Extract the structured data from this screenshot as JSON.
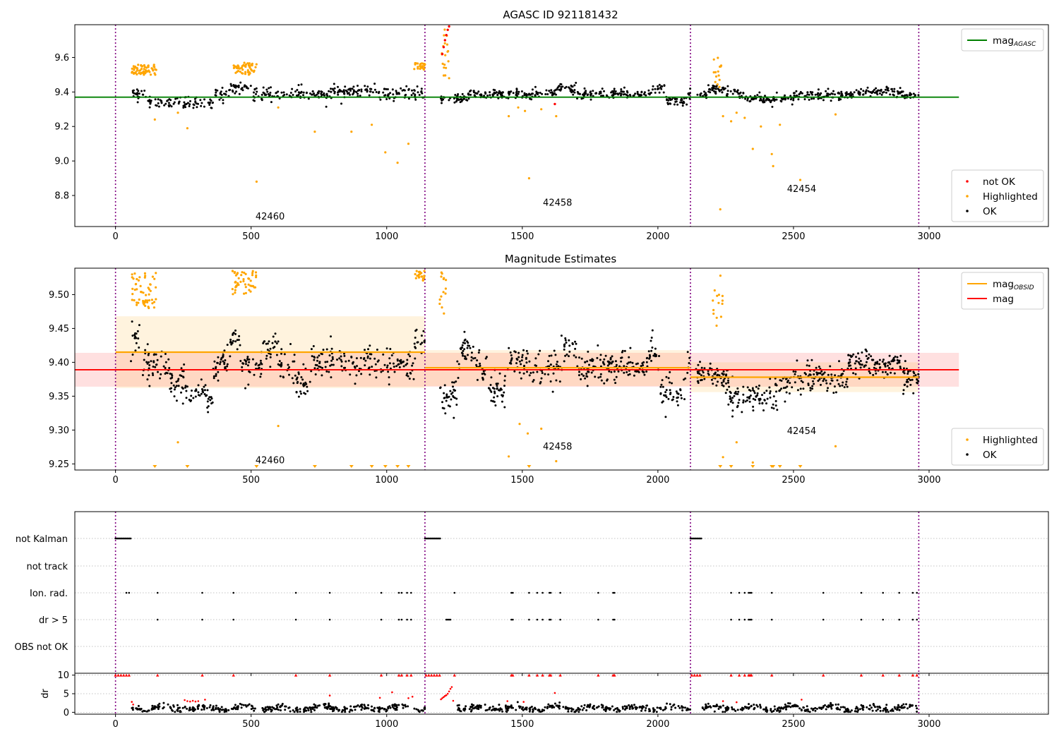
{
  "figure": {
    "background": "#ffffff"
  },
  "chart_data": [
    {
      "type": "scatter",
      "title": "AGASC ID 921181432",
      "xlim": [
        -150,
        3440
      ],
      "ylim": [
        8.62,
        9.79
      ],
      "xticks": [
        0,
        500,
        1000,
        1500,
        2000,
        2500,
        3000
      ],
      "yticks": [
        8.8,
        9.0,
        9.2,
        9.4,
        9.6
      ],
      "ytick_labels": [
        "8.8",
        "9.0",
        "9.2",
        "9.4",
        "9.6"
      ],
      "obs_boundaries": [
        0,
        1141,
        2120,
        2962
      ],
      "obsid_labels": [
        {
          "text": "42460",
          "x": 570,
          "y": 8.66
        },
        {
          "text": "42458",
          "x": 1630,
          "y": 8.74
        },
        {
          "text": "42454",
          "x": 2530,
          "y": 8.82
        }
      ],
      "lines": [
        {
          "name": "mag",
          "subscript": "AGASC",
          "color": "#008000",
          "y": 9.37,
          "x": [
            -150,
            3110
          ]
        }
      ],
      "legends": [
        {
          "position": "upper-right",
          "items": [
            {
              "label": "mag",
              "subscript": "AGASC",
              "color": "#008000",
              "kind": "line"
            }
          ]
        },
        {
          "position": "lower-right",
          "items": [
            {
              "label": "not OK",
              "color": "#ff0000",
              "kind": "dot"
            },
            {
              "label": "Highlighted",
              "color": "#ffa500",
              "kind": "dot"
            },
            {
              "label": "OK",
              "color": "#000000",
              "kind": "dot"
            }
          ]
        }
      ],
      "segments": [
        {
          "name": "42460",
          "x": [
            60,
            1141
          ],
          "ok_mean": 9.39,
          "ok_noise": 0.018,
          "ok_n": 380,
          "waves": [
            [
              120,
              360,
              9.34
            ],
            [
              420,
              500,
              9.43
            ],
            [
              800,
              960,
              9.405
            ]
          ]
        },
        {
          "name": "42458",
          "x": [
            1195,
            2120
          ],
          "ok_mean": 9.39,
          "ok_noise": 0.014,
          "ok_n": 360,
          "waves": [
            [
              1195,
              1300,
              9.36
            ],
            [
              1620,
              1700,
              9.42
            ],
            [
              1980,
              2030,
              9.42
            ],
            [
              2030,
              2110,
              9.35
            ]
          ]
        },
        {
          "name": "42454",
          "x": [
            2140,
            2962
          ],
          "ok_mean": 9.38,
          "ok_noise": 0.012,
          "ok_n": 330,
          "waves": [
            [
              2180,
              2300,
              9.41
            ],
            [
              2320,
              2500,
              9.36
            ],
            [
              2720,
              2900,
              9.4
            ]
          ]
        }
      ],
      "highlighted_clusters": [
        {
          "x": [
            60,
            150
          ],
          "y_range": [
            9.5,
            9.56
          ],
          "n": 60
        },
        {
          "x": [
            435,
            520
          ],
          "y_range": [
            9.5,
            9.57
          ],
          "n": 50
        },
        {
          "x": [
            1100,
            1141
          ],
          "y_range": [
            9.53,
            9.57
          ],
          "n": 25
        },
        {
          "x": [
            1200,
            1230
          ],
          "y_range": [
            9.47,
            9.78
          ],
          "n": 18
        },
        {
          "x": [
            2200,
            2240
          ],
          "y_range": [
            9.42,
            9.6
          ],
          "n": 14
        }
      ],
      "not_ok_points": [
        [
          1210,
          9.66
        ],
        [
          1215,
          9.7
        ],
        [
          1220,
          9.73
        ],
        [
          1225,
          9.76
        ],
        [
          1230,
          9.78
        ],
        [
          1205,
          9.62
        ],
        [
          1620,
          9.33
        ]
      ],
      "highlighted_outliers": [
        [
          145,
          9.24
        ],
        [
          230,
          9.28
        ],
        [
          265,
          9.19
        ],
        [
          520,
          8.88
        ],
        [
          600,
          9.31
        ],
        [
          735,
          9.17
        ],
        [
          870,
          9.17
        ],
        [
          945,
          9.21
        ],
        [
          995,
          9.05
        ],
        [
          1040,
          8.99
        ],
        [
          1080,
          9.1
        ],
        [
          1230,
          9.48
        ],
        [
          1450,
          9.26
        ],
        [
          1485,
          9.31
        ],
        [
          1510,
          9.29
        ],
        [
          1525,
          8.9
        ],
        [
          1570,
          9.3
        ],
        [
          1625,
          9.26
        ],
        [
          2230,
          8.72
        ],
        [
          2240,
          9.26
        ],
        [
          2270,
          9.23
        ],
        [
          2290,
          9.28
        ],
        [
          2320,
          9.25
        ],
        [
          2350,
          9.07
        ],
        [
          2380,
          9.2
        ],
        [
          2420,
          9.04
        ],
        [
          2425,
          8.97
        ],
        [
          2450,
          9.21
        ],
        [
          2525,
          8.89
        ],
        [
          2655,
          9.27
        ]
      ]
    },
    {
      "type": "scatter",
      "title": "Magnitude Estimates",
      "xlim": [
        -150,
        3440
      ],
      "ylim": [
        9.241,
        9.539
      ],
      "xticks": [
        0,
        500,
        1000,
        1500,
        2000,
        2500,
        3000
      ],
      "yticks": [
        9.25,
        9.3,
        9.35,
        9.4,
        9.45,
        9.5
      ],
      "ytick_labels": [
        "9.25",
        "9.30",
        "9.35",
        "9.40",
        "9.45",
        "9.50"
      ],
      "obs_boundaries": [
        0,
        1141,
        2120,
        2962
      ],
      "obsid_labels": [
        {
          "text": "42460",
          "x": 570,
          "y": 9.251
        },
        {
          "text": "42458",
          "x": 1630,
          "y": 9.271
        },
        {
          "text": "42454",
          "x": 2530,
          "y": 9.294
        }
      ],
      "global_mag": {
        "name": "mag",
        "color": "#ff0000",
        "value": 9.389,
        "band": [
          9.364,
          9.414
        ],
        "x": [
          -150,
          3110
        ]
      },
      "obsid_mags": [
        {
          "x": [
            0,
            1141
          ],
          "value": 9.415,
          "band": [
            9.362,
            9.468
          ]
        },
        {
          "x": [
            1141,
            2120
          ],
          "value": 9.392,
          "band": [
            9.365,
            9.418
          ]
        },
        {
          "x": [
            2120,
            2962
          ],
          "value": 9.378,
          "band": [
            9.356,
            9.4
          ]
        }
      ],
      "obsid_color": "#ffa500",
      "legends": [
        {
          "position": "upper-right",
          "items": [
            {
              "label": "mag",
              "subscript": "OBSID",
              "color": "#ffa500",
              "kind": "line"
            },
            {
              "label": "mag",
              "color": "#ff0000",
              "kind": "line"
            }
          ]
        },
        {
          "position": "lower-right",
          "items": [
            {
              "label": "Highlighted",
              "color": "#ffa500",
              "kind": "dot"
            },
            {
              "label": "OK",
              "color": "#000000",
              "kind": "dot"
            }
          ]
        }
      ],
      "segments": [
        {
          "name": "42460",
          "x": [
            55,
            1141
          ],
          "ok_mean": 9.398,
          "ok_noise": 0.013,
          "ok_n": 480,
          "waves": [
            [
              60,
              90,
              9.43
            ],
            [
              200,
              260,
              9.375
            ],
            [
              260,
              300,
              9.355
            ],
            [
              300,
              360,
              9.35
            ],
            [
              420,
              460,
              9.43
            ],
            [
              540,
              600,
              9.42
            ],
            [
              660,
              720,
              9.37
            ],
            [
              1100,
              1141,
              9.43
            ]
          ]
        },
        {
          "name": "42458",
          "x": [
            1195,
            2120
          ],
          "ok_mean": 9.393,
          "ok_noise": 0.012,
          "ok_n": 440,
          "waves": [
            [
              1195,
              1260,
              9.35
            ],
            [
              1270,
              1330,
              9.415
            ],
            [
              1370,
              1440,
              9.36
            ],
            [
              1440,
              1520,
              9.4
            ],
            [
              1520,
              1600,
              9.39
            ],
            [
              1640,
              1700,
              9.42
            ],
            [
              1960,
              2000,
              9.415
            ],
            [
              2010,
              2100,
              9.355
            ]
          ]
        },
        {
          "name": "42454",
          "x": [
            2140,
            2962
          ],
          "ok_mean": 9.378,
          "ok_noise": 0.01,
          "ok_n": 420,
          "waves": [
            [
              2150,
              2230,
              9.385
            ],
            [
              2260,
              2440,
              9.35
            ],
            [
              2440,
              2500,
              9.37
            ],
            [
              2700,
              2900,
              9.398
            ]
          ]
        }
      ],
      "highlighted_clusters": [
        {
          "x": [
            60,
            150
          ],
          "y_range": [
            9.48,
            9.535
          ],
          "n": 55
        },
        {
          "x": [
            430,
            520
          ],
          "y_range": [
            9.5,
            9.535
          ],
          "n": 50
        },
        {
          "x": [
            1100,
            1141
          ],
          "y_range": [
            9.52,
            9.535
          ],
          "n": 20
        },
        {
          "x": [
            1195,
            1225
          ],
          "y_range": [
            9.47,
            9.535
          ],
          "n": 14
        },
        {
          "x": [
            2200,
            2240
          ],
          "y_range": [
            9.45,
            9.535
          ],
          "n": 14
        }
      ],
      "highlighted_outliers": [
        [
          230,
          9.282
        ],
        [
          600,
          9.306
        ],
        [
          1450,
          9.261
        ],
        [
          1490,
          9.309
        ],
        [
          1520,
          9.295
        ],
        [
          1570,
          9.302
        ],
        [
          1625,
          9.254
        ],
        [
          2240,
          9.26
        ],
        [
          2290,
          9.282
        ],
        [
          2350,
          9.252
        ],
        [
          2655,
          9.276
        ]
      ],
      "below_axis_markers": [
        145,
        265,
        520,
        735,
        870,
        945,
        995,
        1040,
        1080,
        1525,
        2230,
        2270,
        2350,
        2420,
        2425,
        2450,
        2525
      ]
    },
    {
      "type": "scatter",
      "title": "",
      "xlim": [
        -150,
        3440
      ],
      "xticks": [
        0,
        500,
        1000,
        1500,
        2000,
        2500,
        3000
      ],
      "obs_boundaries": [
        0,
        1141,
        2120,
        2962
      ],
      "flag_rows": [
        "not Kalman",
        "not track",
        "Ion. rad.",
        "dr > 5",
        "OBS not OK"
      ],
      "flags": {
        "not Kalman": {
          "ranges": [
            [
              0,
              58
            ],
            [
              1141,
              1200
            ],
            [
              2120,
              2162
            ]
          ]
        },
        "not track": {
          "ranges": []
        },
        "Ion. rad.": {
          "points": [
            40,
            50,
            155,
            320,
            435,
            665,
            790,
            980,
            1045,
            1055,
            1075,
            1090,
            1250,
            1460,
            1465,
            1525,
            1555,
            1575,
            1600,
            1605,
            1640,
            1780,
            1835,
            1840,
            2270,
            2300,
            2320,
            2335,
            2340,
            2345,
            2420,
            2610,
            2750,
            2830,
            2890,
            2940,
            2955
          ]
        },
        "dr > 5": {
          "points": [
            155,
            320,
            435,
            665,
            790,
            980,
            1045,
            1055,
            1075,
            1090,
            1220,
            1225,
            1230,
            1235,
            1460,
            1465,
            1525,
            1555,
            1575,
            1600,
            1605,
            1640,
            1780,
            1835,
            1840,
            2270,
            2300,
            2320,
            2335,
            2340,
            2345,
            2420,
            2610,
            2750,
            2830,
            2890,
            2940,
            2955
          ]
        },
        "OBS not OK": {
          "points": []
        }
      },
      "row_grid_color": "#b0b0b0"
    },
    {
      "type": "scatter",
      "title": "",
      "ylabel": "dr",
      "xlim": [
        -150,
        3440
      ],
      "ylim": [
        -0.5,
        10.5
      ],
      "xticks": [
        0,
        500,
        1000,
        1500,
        2000,
        2500,
        3000
      ],
      "xtick_labels": [
        "0",
        "500",
        "1000",
        "1500",
        "2000",
        "2500",
        "3000"
      ],
      "yticks": [
        0,
        5,
        10
      ],
      "ytick_labels": [
        "0",
        "5",
        "10"
      ],
      "obs_boundaries": [
        0,
        1141,
        2120,
        2962
      ],
      "ok": {
        "mean": 1.1,
        "noise": 0.45,
        "n": 900,
        "x_segments": [
          [
            60,
            1141
          ],
          [
            1260,
            2120
          ],
          [
            2160,
            2962
          ]
        ]
      },
      "red_clipped_x": [
        0,
        10,
        20,
        30,
        40,
        50,
        155,
        320,
        435,
        665,
        790,
        980,
        1045,
        1055,
        1075,
        1090,
        1145,
        1155,
        1165,
        1175,
        1185,
        1195,
        1250,
        1460,
        1465,
        1525,
        1555,
        1575,
        1600,
        1605,
        1640,
        1780,
        1835,
        1840,
        2125,
        2135,
        2145,
        2155,
        2270,
        2300,
        2320,
        2335,
        2340,
        2345,
        2420,
        2610,
        2750,
        2830,
        2890,
        2940,
        2955
      ],
      "red_points": [
        [
          60,
          2.8
        ],
        [
          65,
          2.1
        ],
        [
          255,
          3.3
        ],
        [
          265,
          3.0
        ],
        [
          275,
          2.9
        ],
        [
          285,
          3.1
        ],
        [
          295,
          2.9
        ],
        [
          305,
          3.0
        ],
        [
          330,
          3.4
        ],
        [
          790,
          4.5
        ],
        [
          975,
          3.9
        ],
        [
          1020,
          5.4
        ],
        [
          1080,
          3.8
        ],
        [
          1095,
          4.2
        ],
        [
          1200,
          3.5
        ],
        [
          1205,
          3.8
        ],
        [
          1210,
          4.1
        ],
        [
          1215,
          4.4
        ],
        [
          1220,
          4.6
        ],
        [
          1225,
          5.0
        ],
        [
          1230,
          5.6
        ],
        [
          1235,
          6.3
        ],
        [
          1240,
          6.8
        ],
        [
          1245,
          3.1
        ],
        [
          1445,
          3.0
        ],
        [
          1505,
          2.8
        ],
        [
          1620,
          5.2
        ],
        [
          2240,
          3.0
        ],
        [
          2290,
          2.7
        ],
        [
          2530,
          3.4
        ]
      ]
    }
  ]
}
